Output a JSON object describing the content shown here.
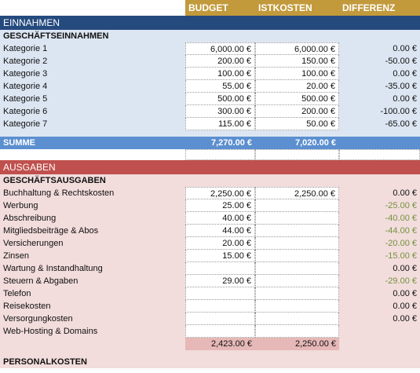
{
  "header": {
    "col_budget": "BUDGET",
    "col_ist": "ISTKOSTEN",
    "col_diff": "DIFFERENZ"
  },
  "einnahmen": {
    "title": "EINNAHMEN",
    "subtitle": "GESCHÄFTSEINNAHMEN",
    "rows": [
      {
        "label": "Kategorie 1",
        "budget": "6,000.00 €",
        "ist": "6,000.00 €",
        "diff": "0.00 €"
      },
      {
        "label": "Kategorie 2",
        "budget": "200.00 €",
        "ist": "150.00 €",
        "diff": "-50.00 €"
      },
      {
        "label": "Kategorie 3",
        "budget": "100.00 €",
        "ist": "100.00 €",
        "diff": "0.00 €"
      },
      {
        "label": "Kategorie 4",
        "budget": "55.00 €",
        "ist": "20.00 €",
        "diff": "-35.00 €"
      },
      {
        "label": "Kategorie 5",
        "budget": "500.00 €",
        "ist": "500.00 €",
        "diff": "0.00 €"
      },
      {
        "label": "Kategorie 6",
        "budget": "300.00 €",
        "ist": "200.00 €",
        "diff": "-100.00 €"
      },
      {
        "label": "Kategorie 7",
        "budget": "115.00 €",
        "ist": "50.00 €",
        "diff": "-65.00 €"
      }
    ],
    "summe_label": "SUMME",
    "summe_budget": "7,270.00 €",
    "summe_ist": "7,020.00 €"
  },
  "ausgaben": {
    "title": "AUSGABEN",
    "subtitle": "GESCHÄFTSAUSGABEN",
    "rows": [
      {
        "label": "Buchhaltung & Rechtskosten",
        "budget": "2,250.00 €",
        "ist": "2,250.00 €",
        "diff": "0.00 €"
      },
      {
        "label": "Werbung",
        "budget": "25.00 €",
        "ist": "",
        "diff": "-25.00 €"
      },
      {
        "label": "Abschreibung",
        "budget": "40.00 €",
        "ist": "",
        "diff": "-40.00 €"
      },
      {
        "label": "Mitgliedsbeiträge & Abos",
        "budget": "44.00 €",
        "ist": "",
        "diff": "-44.00 €"
      },
      {
        "label": "Versicherungen",
        "budget": "20.00 €",
        "ist": "",
        "diff": "-20.00 €"
      },
      {
        "label": "Zinsen",
        "budget": "15.00 €",
        "ist": "",
        "diff": "-15.00 €"
      },
      {
        "label": "Wartung & Instandhaltung",
        "budget": "",
        "ist": "",
        "diff": "0.00 €"
      },
      {
        "label": "Steuern & Abgaben",
        "budget": "29.00 €",
        "ist": "",
        "diff": "-29.00 €"
      },
      {
        "label": "Telefon",
        "budget": "",
        "ist": "",
        "diff": "0.00 €"
      },
      {
        "label": "Reisekosten",
        "budget": "",
        "ist": "",
        "diff": "0.00 €"
      },
      {
        "label": "Versorgungkosten",
        "budget": "",
        "ist": "",
        "diff": "0.00 €"
      },
      {
        "label": "Web-Hosting & Domains",
        "budget": "",
        "ist": "",
        "diff": ""
      }
    ],
    "total_budget": "2,423.00 €",
    "total_ist": "2,250.00 €",
    "next_subtitle": "PERSONALKOSTEN"
  },
  "colors": {
    "gold": "#c29a3c",
    "navy": "#254a7e",
    "blue_bg": "#dce6f2",
    "summe": "#5b8fd0",
    "red": "#c0504d",
    "pink_bg": "#f2dcdc",
    "green": "#76923c"
  }
}
